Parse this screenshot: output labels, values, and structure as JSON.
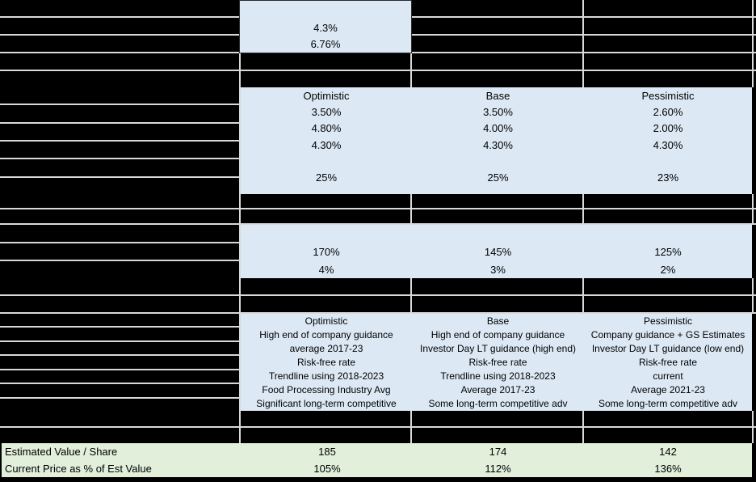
{
  "colors": {
    "cell_blue": "#dce9f5",
    "cell_green": "#e2efda",
    "gridline": "#d9d9d9",
    "sheet_background": "#000000"
  },
  "top_input_cell": {
    "line1": "4.3%",
    "line2": "6.76%"
  },
  "scenario_header": [
    "Optimistic",
    "Base",
    "Pessimistic"
  ],
  "blocks": {
    "scenario_rates": {
      "rows": [
        [
          "Optimistic",
          "Base",
          "Pessimistic"
        ],
        [
          "3.50%",
          "3.50%",
          "2.60%"
        ],
        [
          "4.80%",
          "4.00%",
          "2.00%"
        ],
        [
          "4.30%",
          "4.30%",
          "4.30%"
        ],
        [
          "",
          "",
          ""
        ],
        [
          "25%",
          "25%",
          "23%"
        ]
      ]
    },
    "scenario_ratios": {
      "rows": [
        [
          "",
          "",
          ""
        ],
        [
          "170%",
          "145%",
          "125%"
        ],
        [
          "4%",
          "3%",
          "2%"
        ]
      ]
    },
    "scenario_notes": {
      "rows": [
        [
          "Optimistic",
          "Base",
          "Pessimistic"
        ],
        [
          "High end of company guidance",
          "High end of company guidance",
          "Company guidance + GS Estimates"
        ],
        [
          "average 2017-23",
          "Investor Day LT guidance (high end)",
          "Investor Day LT guidance (low end)"
        ],
        [
          "Risk-free rate",
          "Risk-free rate",
          "Risk-free rate"
        ],
        [
          "Trendline using 2018-2023",
          "Trendline using 2018-2023",
          "current"
        ],
        [
          "Food Processing Industry Avg",
          "Average 2017-23",
          "Average 2021-23"
        ],
        [
          "Significant long-term competitive",
          "Some long-term competitive adv",
          "Some long-term competitive adv"
        ]
      ]
    }
  },
  "summary": {
    "rows": [
      {
        "label": "Estimated Value / Share",
        "values": [
          "185",
          "174",
          "142"
        ]
      },
      {
        "label": "Current Price as % of Est Value",
        "values": [
          "105%",
          "112%",
          "136%"
        ]
      }
    ]
  }
}
